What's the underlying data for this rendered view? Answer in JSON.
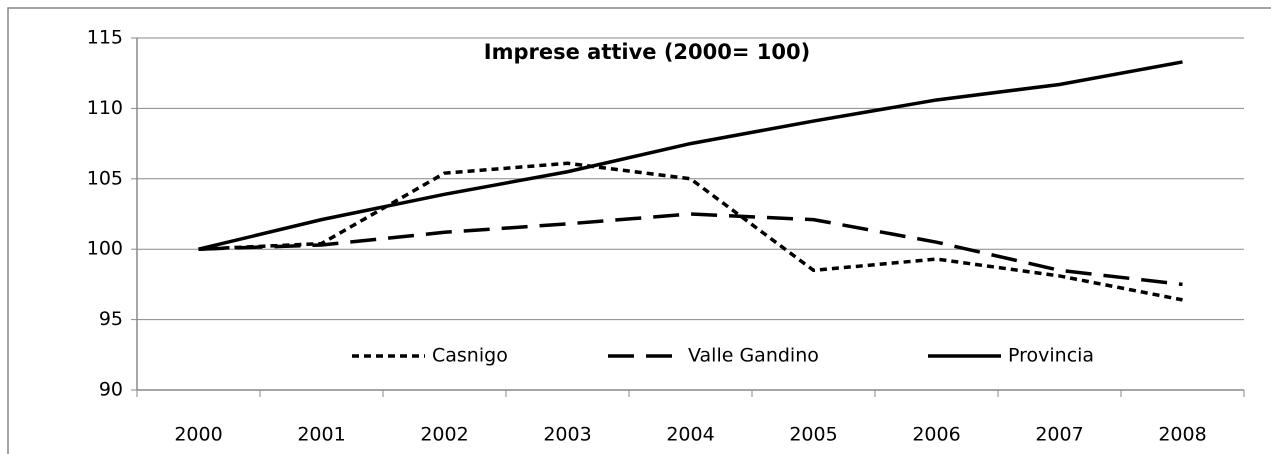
{
  "chart_data": {
    "type": "line",
    "title": "Imprese attive (2000= 100)",
    "categories": [
      "2000",
      "2001",
      "2002",
      "2003",
      "2004",
      "2005",
      "2006",
      "2007",
      "2008"
    ],
    "series": [
      {
        "name": "Casnigo",
        "color": "#000000",
        "dash": "short",
        "values": [
          100,
          100.4,
          105.4,
          106.1,
          105.0,
          98.5,
          99.3,
          98.1,
          96.4
        ]
      },
      {
        "name": "Valle Gandino",
        "color": "#000000",
        "dash": "long",
        "values": [
          100,
          100.3,
          101.2,
          101.8,
          102.5,
          102.1,
          100.5,
          98.5,
          97.5
        ]
      },
      {
        "name": "Provincia",
        "color": "#000000",
        "dash": "solid",
        "values": [
          100,
          102.1,
          103.9,
          105.5,
          107.5,
          109.1,
          110.6,
          111.7,
          113.3
        ]
      }
    ],
    "ylim": [
      90,
      115
    ],
    "yticks": [
      90,
      95,
      100,
      105,
      110,
      115
    ],
    "grid": true,
    "legend": "bottom"
  }
}
